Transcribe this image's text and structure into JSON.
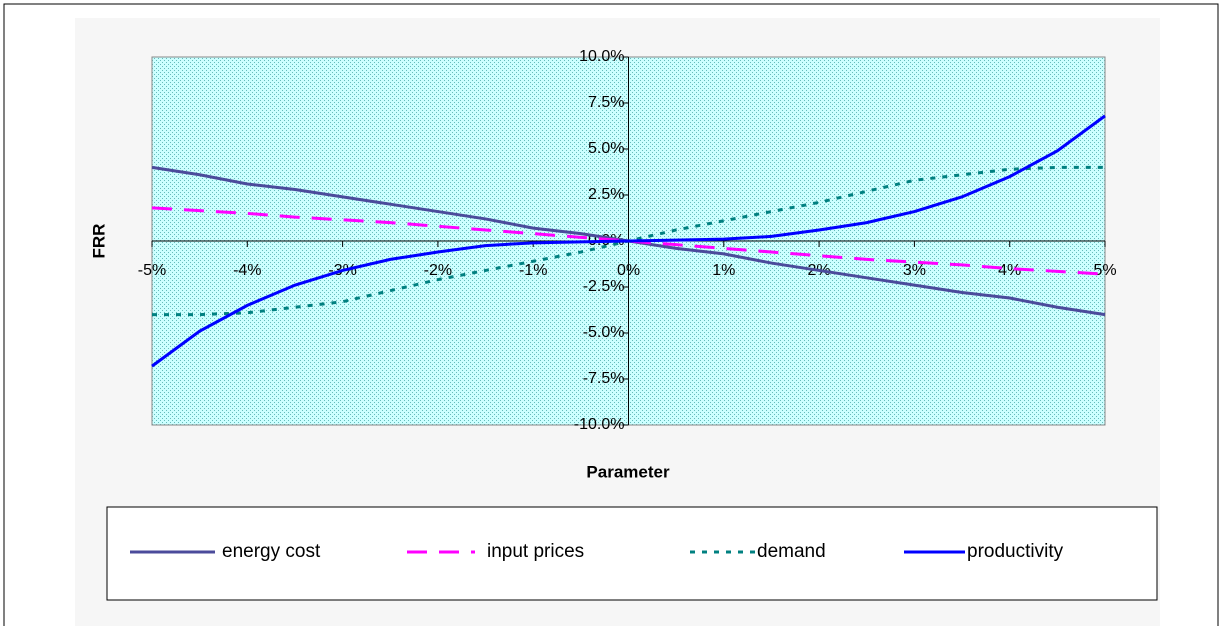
{
  "chart_data": {
    "type": "line",
    "x_label": "Parameter",
    "y_label": "FRR",
    "x": [
      -5,
      -4.5,
      -4,
      -3.5,
      -3,
      -2.5,
      -2,
      -1.5,
      -1,
      -0.5,
      0,
      0.5,
      1,
      1.5,
      2,
      2.5,
      3,
      3.5,
      4,
      4.5,
      5
    ],
    "series": [
      {
        "name": "energy cost",
        "color": "#4b4b9b",
        "dash": "solid",
        "values": [
          4.0,
          3.6,
          3.1,
          2.8,
          2.4,
          2.0,
          1.6,
          1.2,
          0.7,
          0.4,
          0,
          -0.4,
          -0.7,
          -1.2,
          -1.6,
          -2.0,
          -2.4,
          -2.8,
          -3.1,
          -3.6,
          -4.0
        ]
      },
      {
        "name": "input prices",
        "color": "#ff00ff",
        "dash": "dashed",
        "values": [
          1.8,
          1.65,
          1.5,
          1.3,
          1.15,
          1.0,
          0.8,
          0.6,
          0.4,
          0.2,
          0,
          -0.2,
          -0.4,
          -0.6,
          -0.8,
          -1.0,
          -1.15,
          -1.3,
          -1.5,
          -1.65,
          -1.8
        ]
      },
      {
        "name": "demand",
        "color": "#008080",
        "dash": "dotted",
        "values": [
          -4.0,
          -4.0,
          -3.9,
          -3.6,
          -3.3,
          -2.7,
          -2.1,
          -1.6,
          -1.1,
          -0.6,
          0,
          0.6,
          1.1,
          1.6,
          2.1,
          2.7,
          3.3,
          3.6,
          3.9,
          4.0,
          4.0
        ]
      },
      {
        "name": "productivity",
        "color": "#0000ff",
        "dash": "solid",
        "values": [
          -6.8,
          -4.9,
          -3.5,
          -2.4,
          -1.6,
          -1.0,
          -0.6,
          -0.25,
          -0.1,
          -0.05,
          0,
          0.05,
          0.1,
          0.25,
          0.6,
          1.0,
          1.6,
          2.4,
          3.5,
          4.9,
          6.8
        ]
      }
    ],
    "xlim": [
      -5,
      5
    ],
    "xticks": [
      {
        "value": -5,
        "label": "-5%"
      },
      {
        "value": -4,
        "label": "-4%"
      },
      {
        "value": -3,
        "label": "-3%"
      },
      {
        "value": -2,
        "label": "-2%"
      },
      {
        "value": -1,
        "label": "-1%"
      },
      {
        "value": 0,
        "label": "0%"
      },
      {
        "value": 1,
        "label": "1%"
      },
      {
        "value": 2,
        "label": "2%"
      },
      {
        "value": 3,
        "label": "3%"
      },
      {
        "value": 4,
        "label": "4%"
      },
      {
        "value": 5,
        "label": "5%"
      }
    ],
    "ylim": [
      -10,
      10
    ],
    "yticks": [
      {
        "value": -10,
        "label": "-10.0%"
      },
      {
        "value": -7.5,
        "label": "-7.5%"
      },
      {
        "value": -5,
        "label": "-5.0%"
      },
      {
        "value": -2.5,
        "label": "-2.5%"
      },
      {
        "value": 0,
        "label": "0.0%"
      },
      {
        "value": 2.5,
        "label": "2.5%"
      },
      {
        "value": 5,
        "label": "5.0%"
      },
      {
        "value": 7.5,
        "label": "7.5%"
      },
      {
        "value": 10,
        "label": "10.0%"
      }
    ],
    "legend": "bottom",
    "grid": false
  }
}
